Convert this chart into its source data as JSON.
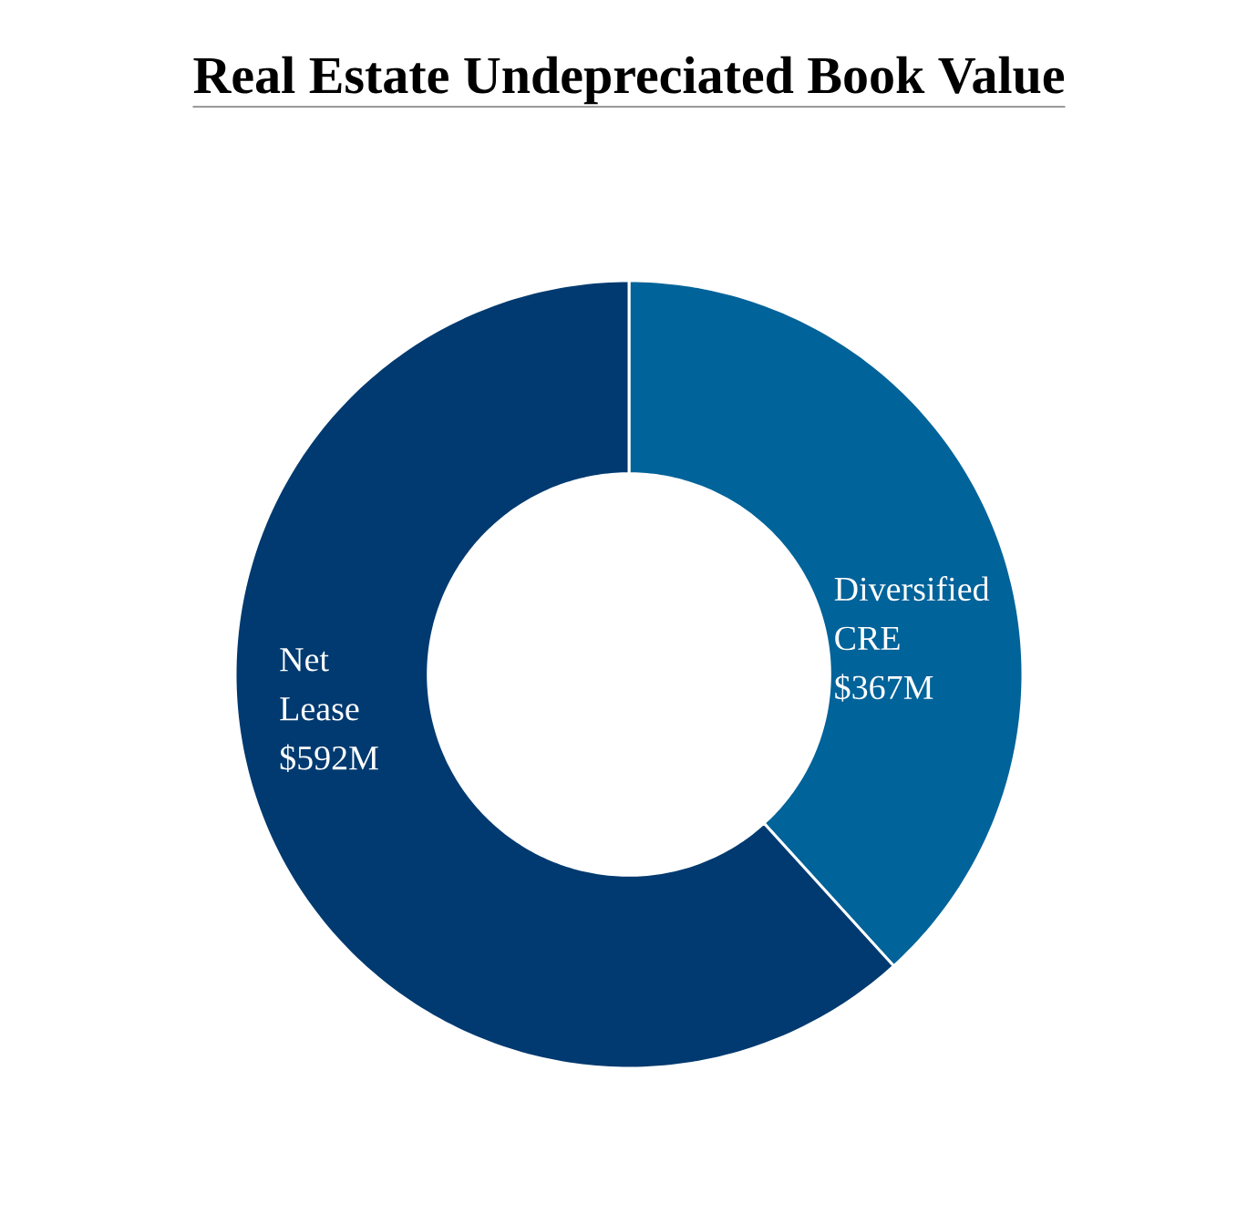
{
  "chart_data": {
    "type": "donut",
    "title": "Real Estate Undepreciated Book Value",
    "categories": [
      "Diversified CRE",
      "Net Lease"
    ],
    "values": [
      367,
      592
    ],
    "value_labels": [
      "$367M",
      "$592M"
    ],
    "colors": [
      "#00639a",
      "#003a70"
    ]
  }
}
